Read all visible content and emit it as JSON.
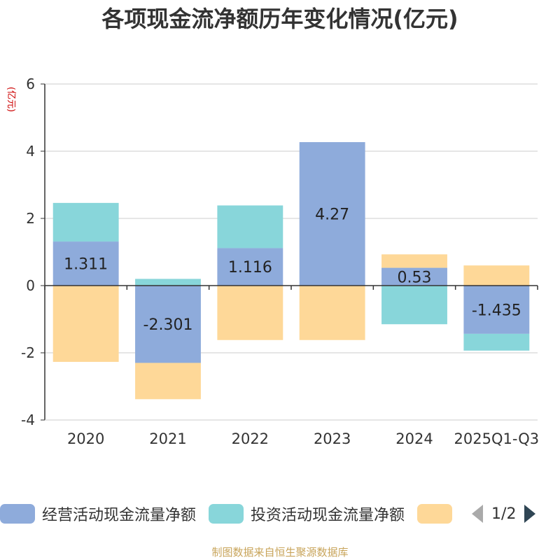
{
  "title": "各项现金流净额历年变化情况(亿元)",
  "source": "制图数据来自恒生聚源数据库",
  "legend": {
    "pager": "1/2",
    "items": [
      {
        "label": "经营活动现金流量净额",
        "color": "#8eabdb"
      },
      {
        "label": "投资活动现金流量净额",
        "color": "#88d6da"
      },
      {
        "label": "",
        "color": "#fed898"
      }
    ]
  },
  "chart_data": {
    "type": "bar",
    "stacked": true,
    "title": "各项现金流净额历年变化情况(亿元)",
    "ylabel": "(亿元)",
    "ylim": [
      -4,
      6
    ],
    "yticks": [
      6,
      4,
      2,
      0,
      -2,
      -4
    ],
    "categories": [
      "2020",
      "2021",
      "2022",
      "2023",
      "2024",
      "2025Q1-Q3"
    ],
    "series": [
      {
        "name": "经营活动现金流量净额",
        "color": "#8eabdb",
        "values": [
          1.311,
          -2.301,
          1.116,
          4.27,
          0.53,
          -1.435
        ],
        "labels": [
          "1.311",
          "-2.301",
          "1.116",
          "4.27",
          "0.53",
          "-1.435"
        ]
      },
      {
        "name": "投资活动现金流量净额",
        "color": "#88d6da",
        "values": [
          1.15,
          0.2,
          1.27,
          0,
          -1.15,
          -0.5
        ]
      },
      {
        "name": "",
        "color": "#fed898",
        "values": [
          -2.27,
          -1.08,
          -1.62,
          -1.62,
          0.4,
          0.6
        ]
      }
    ]
  }
}
